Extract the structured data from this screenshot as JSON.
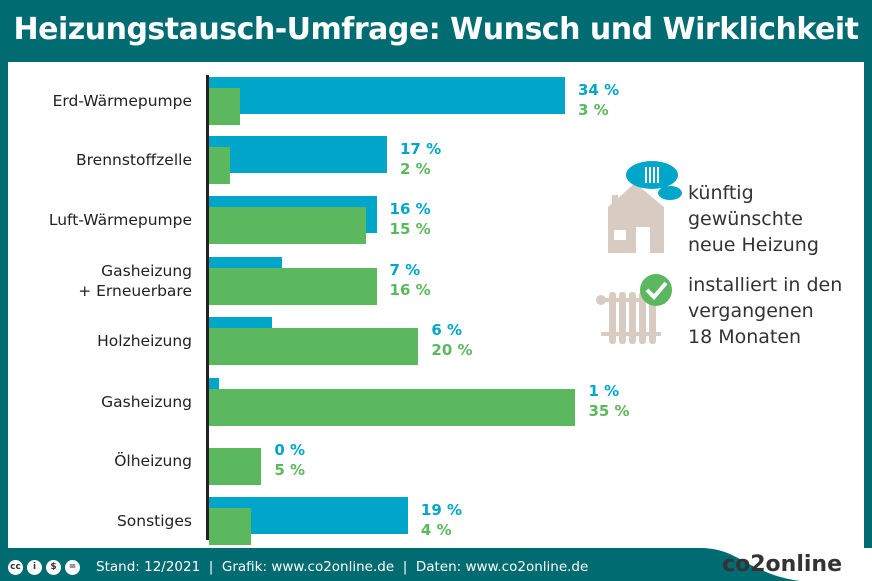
{
  "title": "Heizungstausch-Umfrage: Wunsch und Wirklichkeit",
  "chart_data": {
    "type": "bar",
    "orientation": "horizontal",
    "categories": [
      "Erd-Wärmepumpe",
      "Brennstoffzelle",
      "Luft-Wärmepumpe",
      "Gasheizung\n+ Erneuerbare",
      "Holzheizung",
      "Gasheizung",
      "Ölheizung",
      "Sonstiges"
    ],
    "series": [
      {
        "name": "künftig gewünschte neue Heizung",
        "color": "#00a6c9",
        "values": [
          34,
          17,
          16,
          7,
          6,
          1,
          0,
          19
        ]
      },
      {
        "name": "installiert in den vergangenen 18 Monaten",
        "color": "#5cb85f",
        "values": [
          3,
          2,
          15,
          16,
          20,
          35,
          5,
          4
        ]
      }
    ],
    "unit": "%",
    "legend_position": "right",
    "grid": false
  },
  "legend": [
    {
      "label": "künftig\ngewünschte\nneue Heizung",
      "icon": "house-cloud-radiator-icon"
    },
    {
      "label": "installiert in den\nvergangenen\n18 Monaten",
      "icon": "radiator-check-icon"
    }
  ],
  "footer": {
    "text": "Stand: 12/2021  |  Grafik: www.co2online.de  |  Daten: www.co2online.de",
    "logo": "co2online",
    "license_icons": [
      "cc",
      "by",
      "nc",
      "nd"
    ]
  }
}
